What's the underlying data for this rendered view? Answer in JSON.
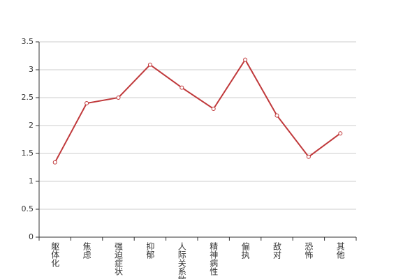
{
  "chart_data": {
    "type": "line",
    "categories": [
      "躯体化",
      "焦虑",
      "强迫症状",
      "抑郁",
      "人际关系敏感",
      "精神病性",
      "偏执",
      "敌对",
      "恐怖",
      "其他"
    ],
    "series": [
      {
        "color": "#c0393b",
        "values": [
          1.34,
          2.4,
          2.5,
          3.09,
          2.68,
          2.3,
          3.18,
          2.18,
          1.44,
          1.86
        ]
      }
    ],
    "ylim": [
      0,
      3.5
    ],
    "yticks": [
      0,
      0.5,
      1,
      1.5,
      2,
      2.5,
      3,
      3.5
    ],
    "grid": true
  }
}
